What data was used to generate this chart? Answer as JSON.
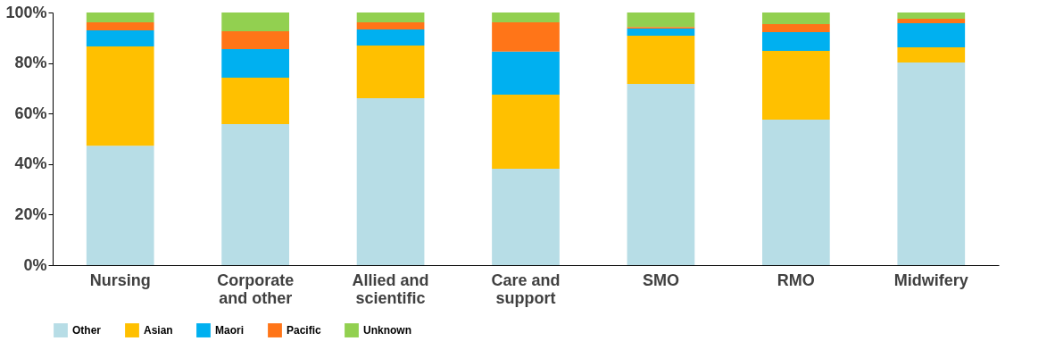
{
  "chart_data": {
    "type": "bar",
    "stacked": true,
    "categories": [
      "Nursing",
      "Corporate and other",
      "Allied and scientific",
      "Care and support",
      "SMO",
      "RMO",
      "Midwifery"
    ],
    "series": [
      {
        "name": "Other",
        "color": "#b7dde6",
        "values": [
          47.3,
          55.8,
          66.1,
          38.2,
          71.7,
          57.6,
          80.2
        ]
      },
      {
        "name": "Asian",
        "color": "#ffc000",
        "values": [
          39.3,
          18.4,
          20.8,
          29.3,
          19.1,
          27.2,
          6.0
        ]
      },
      {
        "name": "Maori",
        "color": "#00b0f0",
        "values": [
          6.3,
          11.3,
          6.4,
          17.0,
          2.8,
          7.4,
          9.6
        ]
      },
      {
        "name": "Pacific",
        "color": "#ff7518",
        "values": [
          3.2,
          7.1,
          2.8,
          11.6,
          0.7,
          3.2,
          1.7
        ]
      },
      {
        "name": "Unknown",
        "color": "#92d050",
        "values": [
          3.9,
          7.4,
          3.9,
          3.9,
          5.7,
          4.6,
          2.5
        ]
      }
    ],
    "ylim": [
      0,
      100
    ],
    "yticks": [
      {
        "value": 0,
        "label": "0%"
      },
      {
        "value": 20,
        "label": "20%"
      },
      {
        "value": 40,
        "label": "40%"
      },
      {
        "value": 60,
        "label": "60%"
      },
      {
        "value": 80,
        "label": "80%"
      },
      {
        "value": 100,
        "label": "100%"
      }
    ],
    "grid": false,
    "legend": "bottom"
  }
}
